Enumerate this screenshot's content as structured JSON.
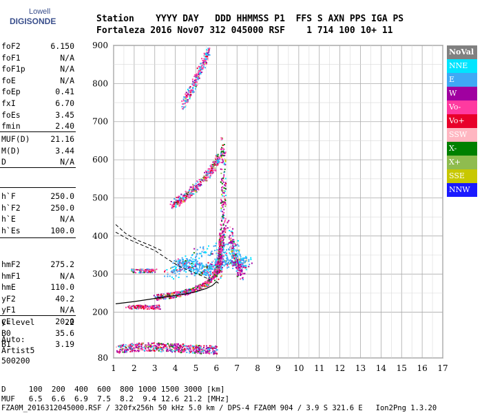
{
  "logo": {
    "line1": "Lowell",
    "line2": "DIGISONDE"
  },
  "header": {
    "line1": "Station    YYYY DAY   DDD HHMMSS P1  FFS S AXN PPS IGA PS",
    "line2": "Fortaleza 2016 Nov07 312 045000 RSF    1 714 100 10+ 11"
  },
  "params_group1": [
    {
      "name": "foF2",
      "value": "6.150"
    },
    {
      "name": "foF1",
      "value": "N/A"
    },
    {
      "name": "foF1p",
      "value": "N/A"
    },
    {
      "name": "foE",
      "value": "N/A"
    },
    {
      "name": "foEp",
      "value": "0.41"
    },
    {
      "name": "fxI",
      "value": "6.70"
    },
    {
      "name": "foEs",
      "value": "3.45"
    },
    {
      "name": "fmin",
      "value": "2.40"
    }
  ],
  "params_group2": [
    {
      "name": "MUF(D)",
      "value": "21.16"
    },
    {
      "name": "M(D)",
      "value": "3.44"
    },
    {
      "name": "D",
      "value": "N/A"
    }
  ],
  "params_group3": [
    {
      "name": "h`F",
      "value": "250.0"
    },
    {
      "name": "h`F2",
      "value": "250.0"
    },
    {
      "name": "h`E",
      "value": "N/A"
    },
    {
      "name": "h`Es",
      "value": "100.0"
    }
  ],
  "params_group4": [
    {
      "name": "hmF2",
      "value": "275.2"
    },
    {
      "name": "hmF1",
      "value": "N/A"
    },
    {
      "name": "hmE",
      "value": "110.0"
    },
    {
      "name": "yF2",
      "value": "40.2"
    },
    {
      "name": "yF1",
      "value": "N/A"
    },
    {
      "name": "yE",
      "value": "20.0"
    },
    {
      "name": "B0",
      "value": "35.6"
    },
    {
      "name": "B1",
      "value": "3.19"
    }
  ],
  "clevel": {
    "name": "C-level",
    "value": "22"
  },
  "auto": {
    "line1": "Auto:",
    "line2": "Artist5",
    "line3": "500200"
  },
  "legend": [
    {
      "label": "NoVal",
      "bg": "#808080",
      "fg": "#ffffff"
    },
    {
      "label": "NNE",
      "bg": "#00e5ff",
      "fg": "#ffffff"
    },
    {
      "label": "E",
      "bg": "#3fa9f5",
      "fg": "#ffffff"
    },
    {
      "label": "W",
      "bg": "#a000a0",
      "fg": "#ffffff"
    },
    {
      "label": "Vo-",
      "bg": "#ff3aa0",
      "fg": "#ffffff"
    },
    {
      "label": "Vo+",
      "bg": "#e8002a",
      "fg": "#ffffff"
    },
    {
      "label": "SSW",
      "bg": "#ffb6c1",
      "fg": "#ffffff"
    },
    {
      "label": "X-",
      "bg": "#008000",
      "fg": "#ffffff"
    },
    {
      "label": "X+",
      "bg": "#8fbc4f",
      "fg": "#ffffff"
    },
    {
      "label": "SSE",
      "bg": "#c8c800",
      "fg": "#ffffff"
    },
    {
      "label": "NNW",
      "bg": "#1a1aff",
      "fg": "#ffffff"
    }
  ],
  "chart_data": {
    "type": "scatter",
    "xlim": [
      1,
      17
    ],
    "ylim": [
      80,
      900
    ],
    "x_ticks": [
      1,
      2,
      3,
      4,
      5,
      6,
      7,
      8,
      9,
      10,
      11,
      12,
      13,
      14,
      15,
      16,
      17
    ],
    "y_ticks": [
      80,
      200,
      300,
      400,
      500,
      600,
      700,
      800,
      900
    ],
    "grid": true,
    "profile_curve": [
      [
        1.1,
        222
      ],
      [
        2,
        228
      ],
      [
        3,
        236
      ],
      [
        3.5,
        240
      ],
      [
        4,
        244
      ],
      [
        4.5,
        248
      ],
      [
        5,
        254
      ],
      [
        5.5,
        262
      ],
      [
        5.8,
        270
      ],
      [
        6.0,
        280
      ],
      [
        6.1,
        276
      ]
    ],
    "dashed_lower": [
      [
        1.1,
        410
      ],
      [
        1.7,
        392
      ],
      [
        2.3,
        378
      ],
      [
        3,
        362
      ],
      [
        3.6,
        340
      ],
      [
        4.2,
        320
      ],
      [
        4.8,
        306
      ],
      [
        5.3,
        295
      ],
      [
        5.7,
        285
      ]
    ],
    "dashed_upper": [
      [
        1.1,
        430
      ],
      [
        1.6,
        406
      ],
      [
        2.2,
        388
      ],
      [
        2.8,
        375
      ],
      [
        3.4,
        360
      ]
    ],
    "trace_f2": [
      [
        3,
        240
      ],
      [
        3.5,
        244
      ],
      [
        4,
        248
      ],
      [
        4.5,
        254
      ],
      [
        5,
        262
      ],
      [
        5.5,
        276
      ],
      [
        5.8,
        292
      ],
      [
        6.0,
        310
      ],
      [
        6.1,
        330
      ],
      [
        6.15,
        360
      ],
      [
        6.2,
        400
      ]
    ],
    "trace_2f2": [
      [
        3.8,
        480
      ],
      [
        4.3,
        500
      ],
      [
        4.8,
        520
      ],
      [
        5.3,
        548
      ],
      [
        5.8,
        580
      ],
      [
        6.1,
        610
      ]
    ],
    "trace_3f2": [
      [
        4.3,
        745
      ],
      [
        4.7,
        780
      ],
      [
        5.0,
        815
      ],
      [
        5.3,
        850
      ],
      [
        5.6,
        890
      ]
    ],
    "trace_es": [
      [
        1.6,
        215
      ],
      [
        2.2,
        215
      ],
      [
        2.8,
        215
      ],
      [
        3.2,
        215
      ]
    ],
    "trace_es2": [
      [
        1.8,
        310
      ],
      [
        2.5,
        310
      ],
      [
        3.0,
        310
      ]
    ],
    "trace_low": [
      [
        1.2,
        105
      ],
      [
        2,
        110
      ],
      [
        3,
        110
      ],
      [
        4,
        108
      ],
      [
        5,
        105
      ],
      [
        6,
        102
      ]
    ],
    "cloud": [
      [
        4,
        320
      ],
      [
        4.5,
        330
      ],
      [
        5,
        320
      ],
      [
        5.5,
        310
      ],
      [
        6,
        325
      ],
      [
        6.5,
        345
      ],
      [
        7,
        340
      ],
      [
        7.5,
        330
      ],
      [
        3.5,
        300
      ],
      [
        5.2,
        360
      ],
      [
        6.8,
        380
      ],
      [
        7.2,
        300
      ]
    ]
  },
  "footer": {
    "line1": "D     100  200  400  600  800 1000 1500 3000 [km]",
    "line2": "MUF   6.5  6.6  6.9  7.5  8.2  9.4 12.6 21.2 [MHz]",
    "line3": "FZA0M_2016312045000.RSF / 320fx256h 50 kHz 5.0 km / DPS-4 FZA0M 904 / 3.9 S 321.6 E   Ion2Png 1.3.20"
  }
}
